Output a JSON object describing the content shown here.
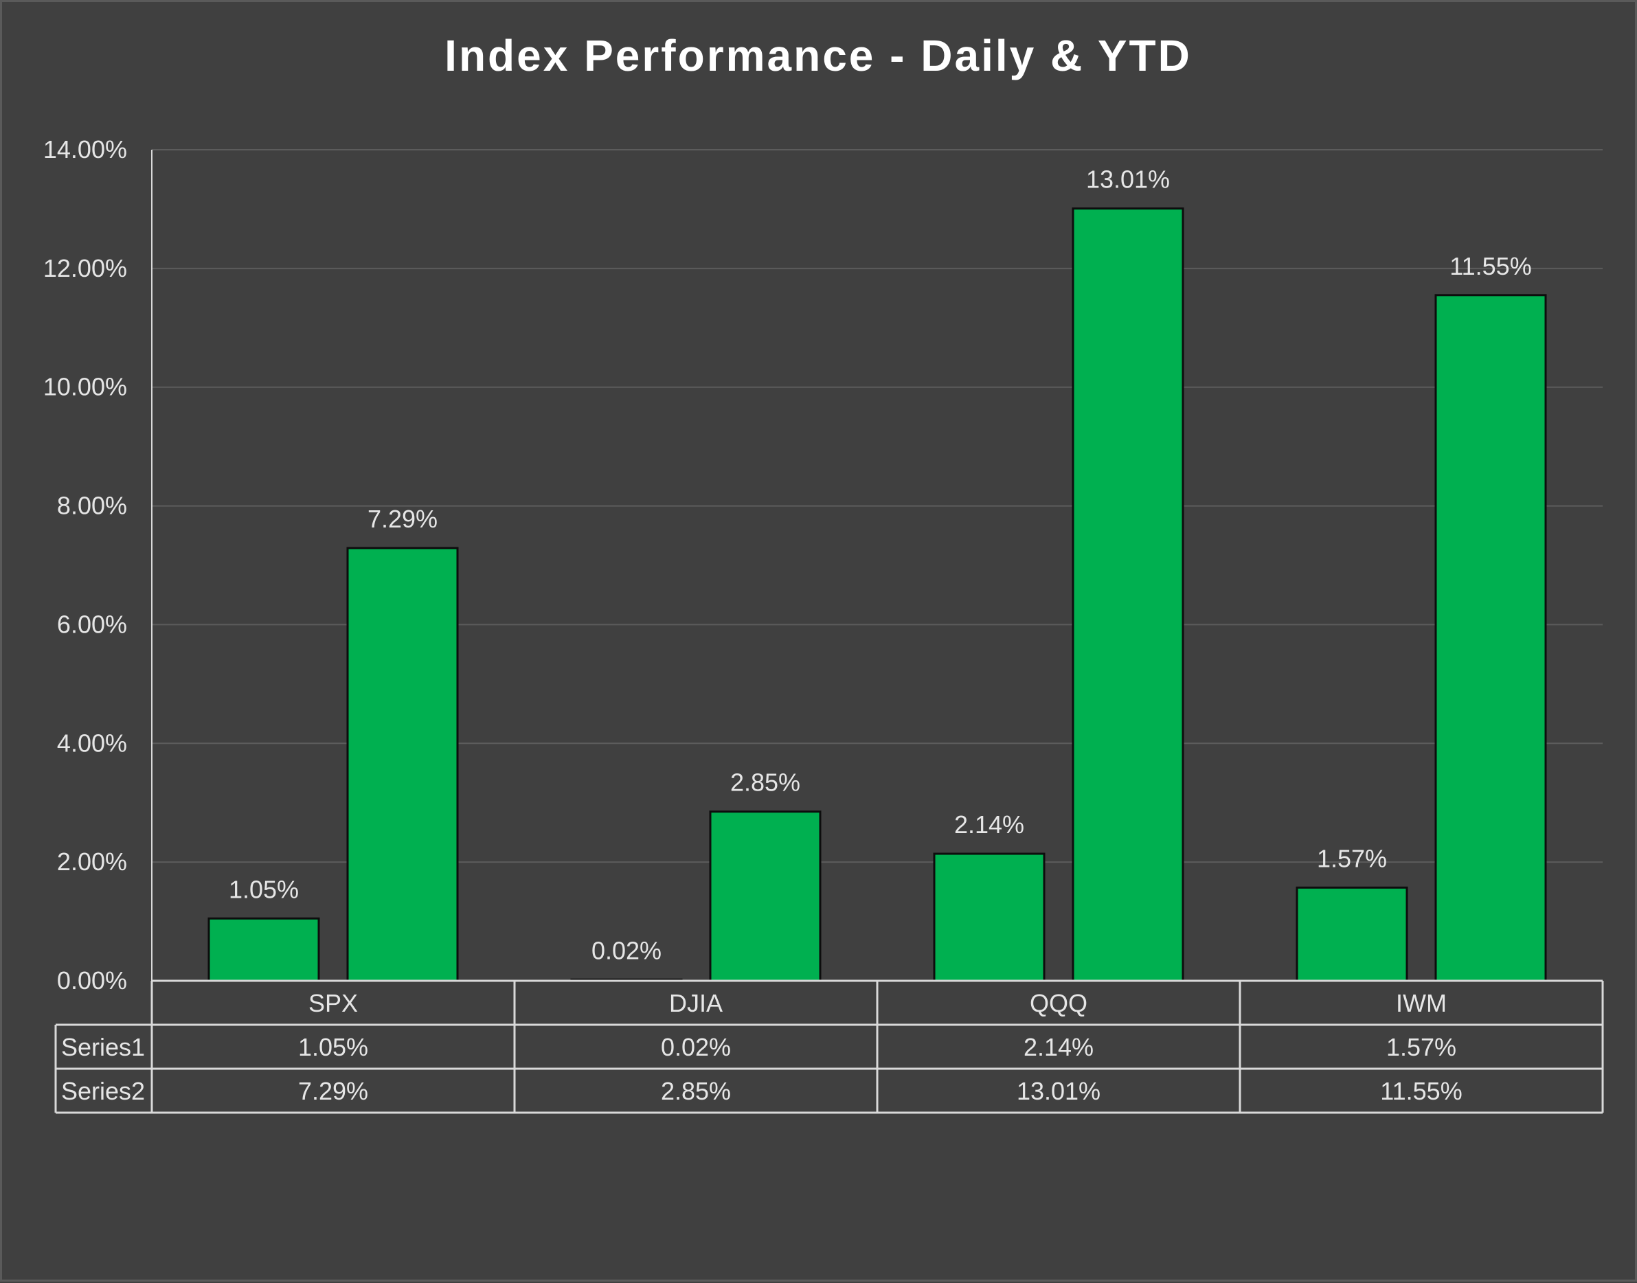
{
  "chart_data": {
    "type": "bar",
    "title": "Index Performance - Daily & YTD",
    "categories": [
      "SPX",
      "DJIA",
      "QQQ",
      "IWM"
    ],
    "series": [
      {
        "name": "Series1",
        "values": [
          1.05,
          0.02,
          2.14,
          1.57
        ],
        "labels": [
          "1.05%",
          "0.02%",
          "2.14%",
          "1.57%"
        ]
      },
      {
        "name": "Series2",
        "values": [
          7.29,
          2.85,
          13.01,
          11.55
        ],
        "labels": [
          "7.29%",
          "2.85%",
          "13.01%",
          "11.55%"
        ]
      }
    ],
    "ylim": [
      0,
      14
    ],
    "yticks": [
      0,
      2,
      4,
      6,
      8,
      10,
      12,
      14
    ],
    "ytick_labels": [
      "0.00%",
      "2.00%",
      "4.00%",
      "6.00%",
      "8.00%",
      "10.00%",
      "12.00%",
      "14.00%"
    ],
    "grid": true,
    "data_table": true,
    "colors": {
      "background": "#404040",
      "bar_fill": "#00b050",
      "bar_stroke": "#0d0d0d",
      "text": "#e6e6e6",
      "gridline": "#5c5c5c",
      "table_line": "#d9d9d9"
    }
  }
}
